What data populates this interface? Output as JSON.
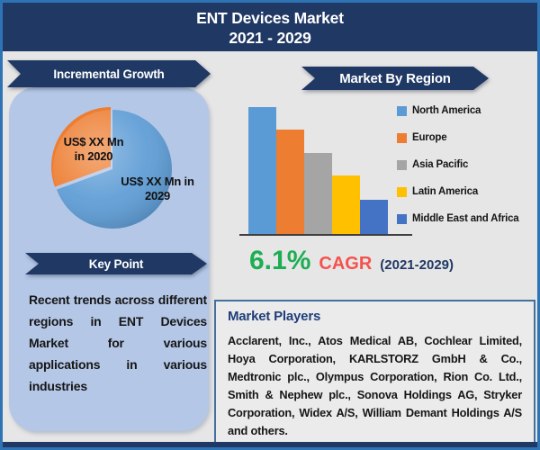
{
  "header": {
    "title_line1": "ENT Devices Market",
    "title_line2": "2021 - 2029"
  },
  "left_panel": {
    "banner": "Incremental Growth",
    "pie_labels": {
      "slice_2020_line1": "US$ XX Mn",
      "slice_2020_line2": "in 2020",
      "slice_2029_line1": "US$ XX Mn in",
      "slice_2029_line2": "2029"
    },
    "key_point": {
      "banner": "Key Point",
      "text": "Recent trends across different regions in ENT Devices Market for various applications in various industries"
    }
  },
  "right_panel": {
    "region_banner": "Market By Region",
    "cagr": {
      "value": "6.1%",
      "label": "CAGR",
      "period": "(2021-2029)"
    },
    "market_players": {
      "title": "Market Players",
      "text": "Acclarent, Inc., Atos Medical AB, Cochlear Limited, Hoya Corporation, KARLSTORZ GmbH & Co., Medtronic plc., Olympus Corporation, Rion Co. Ltd., Smith & Nephew plc., Sonova Holdings AG, Stryker Corporation, Widex A/S, William Demant Holdings A/S and others."
    }
  },
  "chart_data": [
    {
      "type": "pie",
      "title": "Incremental Growth",
      "slices": [
        {
          "label": "US$ XX Mn in 2020",
          "value_pct": 30,
          "color": "#ED7D31"
        },
        {
          "label": "US$ XX Mn in 2029",
          "value_pct": 70,
          "color": "#5B9BD5"
        }
      ],
      "legend_position": "none"
    },
    {
      "type": "bar",
      "title": "Market By Region",
      "categories": [
        "North America",
        "Europe",
        "Asia Pacific",
        "Latin America",
        "Middle East and Africa"
      ],
      "values": [
        100,
        82,
        64,
        46,
        27
      ],
      "colors": [
        "#5B9BD5",
        "#ED7D31",
        "#A5A5A5",
        "#FFC000",
        "#4472C4"
      ],
      "xlabel": "",
      "ylabel": "",
      "ylim": [
        0,
        100
      ],
      "grid": false,
      "legend_position": "right"
    }
  ],
  "colors": {
    "header_navy": "#1F3864",
    "outer_border_blue": "#2E74B5",
    "panel_light_blue": "#B4C7E7",
    "page_background": "#E7E6E6",
    "cagr_green": "#1CAE53",
    "cagr_red": "#F4524D",
    "players_border": "#41719C",
    "players_heading_navy": "#1F3E79",
    "axis_line": "#404040"
  }
}
